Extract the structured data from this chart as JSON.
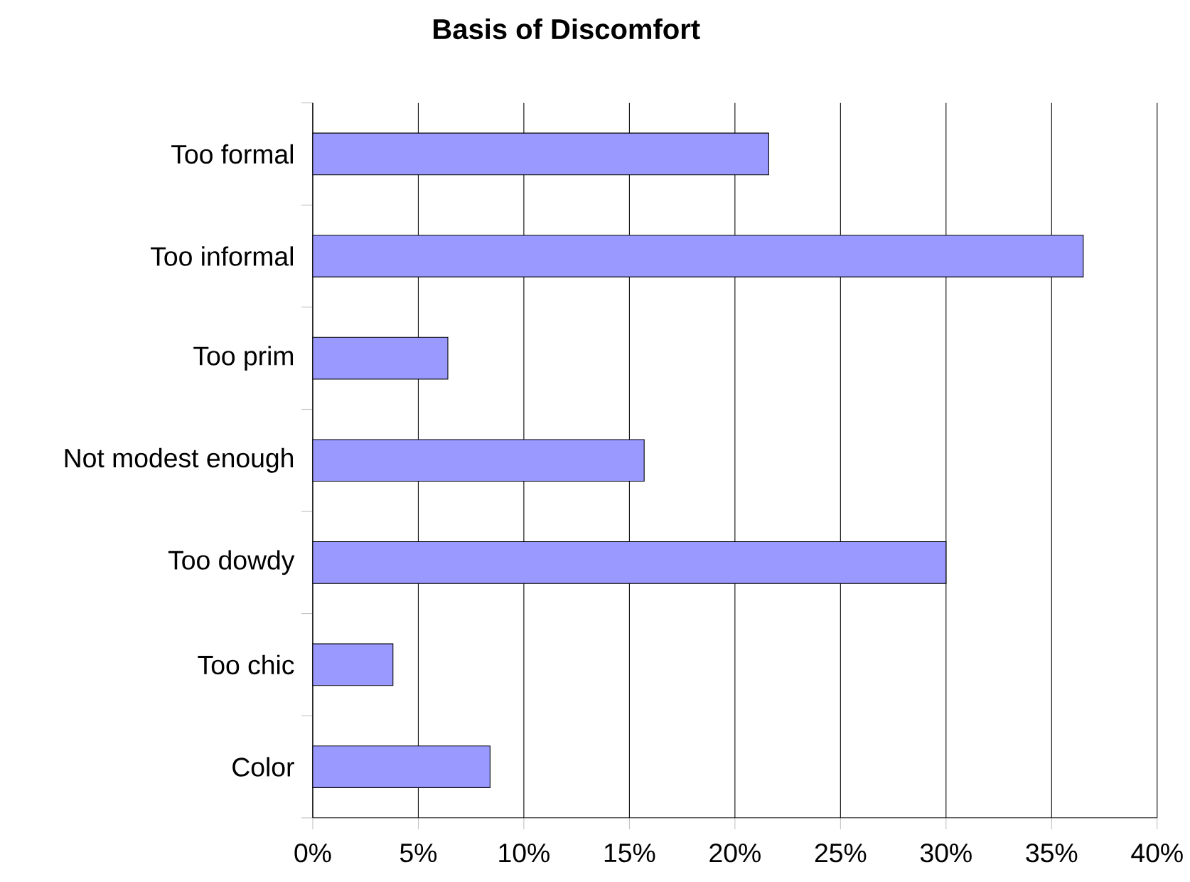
{
  "chart_data": {
    "type": "bar",
    "orientation": "horizontal",
    "title": "Basis of Discomfort",
    "categories": [
      "Too formal",
      "Too informal",
      "Too prim",
      "Not modest enough",
      "Too dowdy",
      "Too chic",
      "Color"
    ],
    "values": [
      21.6,
      36.5,
      6.4,
      15.7,
      30.0,
      3.8,
      8.4
    ],
    "color": "#9999ff",
    "xlim": [
      0,
      40
    ],
    "xticks": [
      {
        "value": 0,
        "label": "0%"
      },
      {
        "value": 5,
        "label": "5%"
      },
      {
        "value": 10,
        "label": "10%"
      },
      {
        "value": 15,
        "label": "15%"
      },
      {
        "value": 20,
        "label": "20%"
      },
      {
        "value": 25,
        "label": "25%"
      },
      {
        "value": 30,
        "label": "30%"
      },
      {
        "value": 35,
        "label": "35%"
      },
      {
        "value": 40,
        "label": "40%"
      }
    ],
    "grid": "x"
  }
}
